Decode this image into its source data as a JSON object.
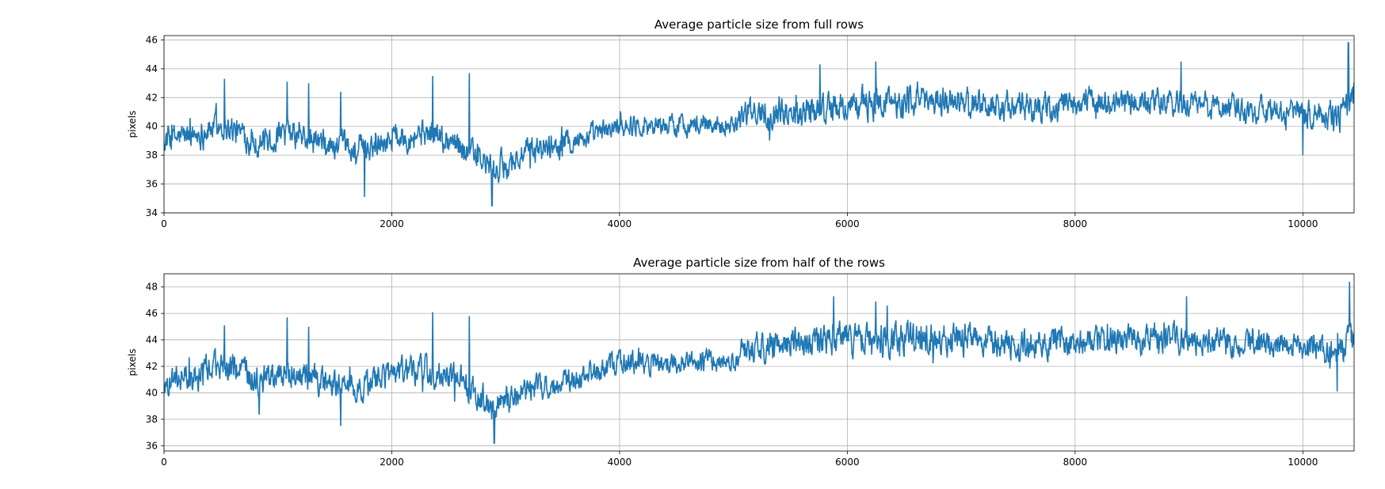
{
  "chart_data": [
    {
      "type": "line",
      "title": "Average particle size from full rows",
      "xlabel": "",
      "ylabel": "pixels",
      "xlim": [
        0,
        10450
      ],
      "ylim": [
        34,
        46.3
      ],
      "xticks": [
        0,
        2000,
        4000,
        6000,
        8000,
        10000
      ],
      "yticks": [
        34,
        36,
        38,
        40,
        42,
        44,
        46
      ],
      "grid": true,
      "series": [
        {
          "color": "#1f77b4",
          "trend": [
            [
              0,
              39.0
            ],
            [
              300,
              39.5
            ],
            [
              500,
              40.2
            ],
            [
              800,
              38.9
            ],
            [
              1100,
              39.4
            ],
            [
              1400,
              38.7
            ],
            [
              1700,
              38.3
            ],
            [
              2000,
              39.3
            ],
            [
              2300,
              39.6
            ],
            [
              2600,
              38.8
            ],
            [
              2900,
              36.9
            ],
            [
              3200,
              38.2
            ],
            [
              3500,
              38.9
            ],
            [
              3800,
              39.4
            ],
            [
              4000,
              40.1
            ],
            [
              4500,
              40.1
            ],
            [
              5000,
              40.2
            ],
            [
              5100,
              40.9
            ],
            [
              5500,
              41.1
            ],
            [
              6000,
              41.4
            ],
            [
              6500,
              41.9
            ],
            [
              7000,
              41.7
            ],
            [
              7500,
              41.3
            ],
            [
              7800,
              41.2
            ],
            [
              8000,
              41.6
            ],
            [
              8500,
              41.7
            ],
            [
              9000,
              41.5
            ],
            [
              9500,
              41.2
            ],
            [
              10000,
              40.9
            ],
            [
              10300,
              40.7
            ],
            [
              10450,
              41.7
            ]
          ],
          "spread": [
            [
              0,
              0.9
            ],
            [
              2000,
              0.9
            ],
            [
              3000,
              0.9
            ],
            [
              4000,
              0.7
            ],
            [
              5000,
              0.6
            ],
            [
              5100,
              0.9
            ],
            [
              6000,
              1.0
            ],
            [
              8000,
              0.9
            ],
            [
              10000,
              0.8
            ],
            [
              10450,
              1.2
            ]
          ],
          "peaks": [
            [
              530,
              43.3
            ],
            [
              1080,
              43.1
            ],
            [
              1270,
              43.0
            ],
            [
              1550,
              42.4
            ],
            [
              2360,
              43.5
            ],
            [
              2680,
              43.7
            ],
            [
              2880,
              34.5
            ],
            [
              1760,
              35.1
            ],
            [
              5760,
              44.3
            ],
            [
              6250,
              44.5
            ],
            [
              8930,
              44.5
            ],
            [
              10000,
              38.0
            ],
            [
              10400,
              45.8
            ]
          ]
        }
      ]
    },
    {
      "type": "line",
      "title": "Average particle size from half of the rows",
      "xlabel": "",
      "ylabel": "pixels",
      "xlim": [
        0,
        10450
      ],
      "ylim": [
        35.6,
        49.0
      ],
      "xticks": [
        0,
        2000,
        4000,
        6000,
        8000,
        10000
      ],
      "yticks": [
        36,
        38,
        40,
        42,
        44,
        46,
        48
      ],
      "grid": true,
      "series": [
        {
          "color": "#1f77b4",
          "trend": [
            [
              0,
              40.8
            ],
            [
              300,
              41.4
            ],
            [
              500,
              42.2
            ],
            [
              800,
              41.0
            ],
            [
              1100,
              41.6
            ],
            [
              1400,
              40.8
            ],
            [
              1700,
              40.4
            ],
            [
              2000,
              41.3
            ],
            [
              2300,
              41.7
            ],
            [
              2600,
              40.9
            ],
            [
              2900,
              38.9
            ],
            [
              3200,
              40.2
            ],
            [
              3500,
              40.9
            ],
            [
              3800,
              41.5
            ],
            [
              4000,
              42.2
            ],
            [
              4500,
              42.3
            ],
            [
              5000,
              42.4
            ],
            [
              5100,
              43.4
            ],
            [
              5500,
              43.7
            ],
            [
              6000,
              44.0
            ],
            [
              6500,
              44.2
            ],
            [
              7000,
              44.0
            ],
            [
              7500,
              43.7
            ],
            [
              7800,
              43.6
            ],
            [
              8000,
              43.9
            ],
            [
              8500,
              44.1
            ],
            [
              9000,
              44.0
            ],
            [
              9500,
              43.7
            ],
            [
              10000,
              43.4
            ],
            [
              10300,
              43.2
            ],
            [
              10450,
              44.2
            ]
          ],
          "spread": [
            [
              0,
              1.0
            ],
            [
              2000,
              1.0
            ],
            [
              3000,
              1.0
            ],
            [
              4000,
              0.8
            ],
            [
              5000,
              0.7
            ],
            [
              5100,
              1.0
            ],
            [
              6000,
              1.1
            ],
            [
              8000,
              1.0
            ],
            [
              10000,
              0.9
            ],
            [
              10450,
              1.3
            ]
          ],
          "peaks": [
            [
              530,
              45.1
            ],
            [
              1080,
              45.7
            ],
            [
              1270,
              45.0
            ],
            [
              2360,
              46.1
            ],
            [
              2680,
              45.8
            ],
            [
              2900,
              36.2
            ],
            [
              1550,
              37.5
            ],
            [
              5880,
              47.3
            ],
            [
              6250,
              46.9
            ],
            [
              8980,
              47.3
            ],
            [
              10300,
              40.1
            ],
            [
              10410,
              48.4
            ]
          ]
        }
      ]
    }
  ]
}
